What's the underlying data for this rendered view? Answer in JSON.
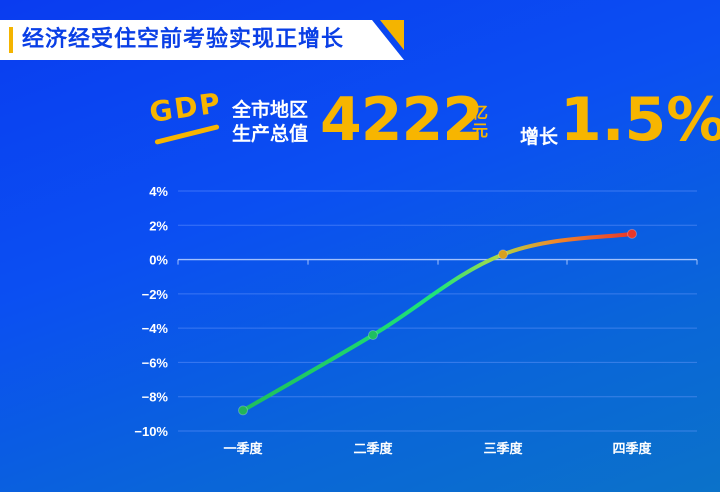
{
  "header": {
    "title": "经济经受住空前考验实现正增长"
  },
  "headline": {
    "logo_text": "GDP",
    "label_line1": "全市地区",
    "label_line2": "生产总值",
    "value": "4222",
    "unit_line1": "亿",
    "unit_line2": "元",
    "growth_label": "增长",
    "growth_value": "1.5%"
  },
  "colors": {
    "accent": "#f7b500",
    "line_start": "#1fbf5a",
    "line_mid": "#1ee57a",
    "line_end": "#e8372b"
  },
  "chart_data": {
    "type": "line",
    "title": "",
    "xlabel": "",
    "ylabel": "",
    "categories": [
      "一季度",
      "二季度",
      "三季度",
      "四季度"
    ],
    "series": [
      {
        "values": [
          -8.8,
          -4.4,
          0.3,
          1.5
        ]
      }
    ],
    "ylim": [
      -10,
      4
    ],
    "yticks": [
      4,
      2,
      0,
      -2,
      -4,
      -6,
      -8,
      -10
    ],
    "ytick_labels": [
      "4%",
      "2%",
      "0%",
      "−2%",
      "−4%",
      "−6%",
      "−8%",
      "−10%"
    ],
    "grid": true,
    "legend": "none"
  }
}
